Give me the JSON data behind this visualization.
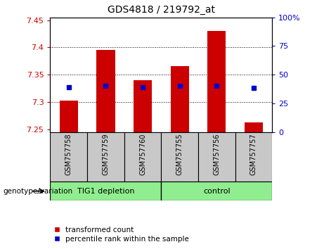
{
  "title": "GDS4818 / 219792_at",
  "samples": [
    "GSM757758",
    "GSM757759",
    "GSM757760",
    "GSM757755",
    "GSM757756",
    "GSM757757"
  ],
  "group_labels": [
    "TIG1 depletion",
    "control"
  ],
  "bar_bottom": 7.245,
  "bar_tops": [
    7.302,
    7.395,
    7.34,
    7.366,
    7.43,
    7.262
  ],
  "blue_values": [
    7.327,
    7.329,
    7.327,
    7.329,
    7.329,
    7.326
  ],
  "ylim": [
    7.245,
    7.455
  ],
  "yticks_left": [
    7.25,
    7.3,
    7.35,
    7.4,
    7.45
  ],
  "yticks_right": [
    0,
    25,
    50,
    75,
    100
  ],
  "grid_vals": [
    7.3,
    7.35,
    7.4
  ],
  "bar_color": "#cc0000",
  "blue_color": "#0000cc",
  "left_tick_color": "#cc0000",
  "right_tick_color": "#0000cc",
  "bar_width": 0.5,
  "legend_labels": [
    "transformed count",
    "percentile rank within the sample"
  ],
  "legend_colors": [
    "#cc0000",
    "#0000cc"
  ],
  "genotype_label": "genotype/variation",
  "xlabel_bg_color": "#c8c8c8",
  "group_bg_color": "#90ee90"
}
